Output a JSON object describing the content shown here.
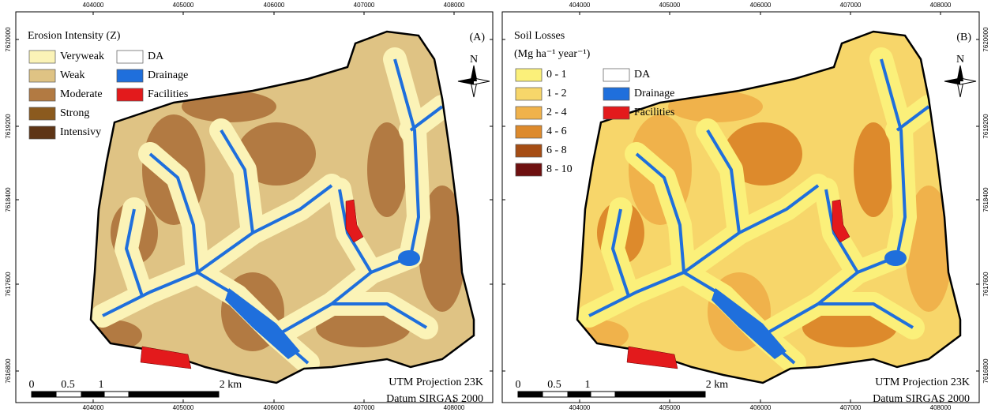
{
  "panels": [
    {
      "label": "(A)",
      "legend_title": [
        "Erosion Intensity (Z)"
      ],
      "legend": [
        {
          "label": "Veryweak",
          "color": "#fbf3b7"
        },
        {
          "label": "Weak",
          "color": "#dfc384"
        },
        {
          "label": "Moderate",
          "color": "#b27a42"
        },
        {
          "label": "Strong",
          "color": "#8b5a1e"
        },
        {
          "label": "Intensivy",
          "color": "#5e3516"
        }
      ]
    },
    {
      "label": "(B)",
      "legend_title": [
        "Soil Losses",
        "(Mg ha⁻¹ year⁻¹)"
      ],
      "legend": [
        {
          "label": "0 - 1",
          "color": "#fbf07a"
        },
        {
          "label": "1 - 2",
          "color": "#f7d66a"
        },
        {
          "label": "2 - 4",
          "color": "#f0b24b"
        },
        {
          "label": "4 - 6",
          "color": "#dd8a2c"
        },
        {
          "label": "6 - 8",
          "color": "#a54d14"
        },
        {
          "label": "8 - 10",
          "color": "#6e1010"
        }
      ]
    }
  ],
  "common_legend": [
    {
      "label": "DA",
      "color": "#ffffff"
    },
    {
      "label": "Drainage",
      "color": "#1f6fdc"
    },
    {
      "label": "Facilities",
      "color": "#e31a1c"
    }
  ],
  "x_ticks": [
    "404000",
    "405000",
    "406000",
    "407000",
    "408000"
  ],
  "y_ticks": [
    "7620000",
    "7619200",
    "7618400",
    "7617600",
    "7616800"
  ],
  "scale_labels": [
    "0",
    "0.5",
    "1",
    "2 km"
  ],
  "north": "N",
  "projection": [
    "UTM Projection 23K",
    "Datum SIRGAS 2000"
  ]
}
